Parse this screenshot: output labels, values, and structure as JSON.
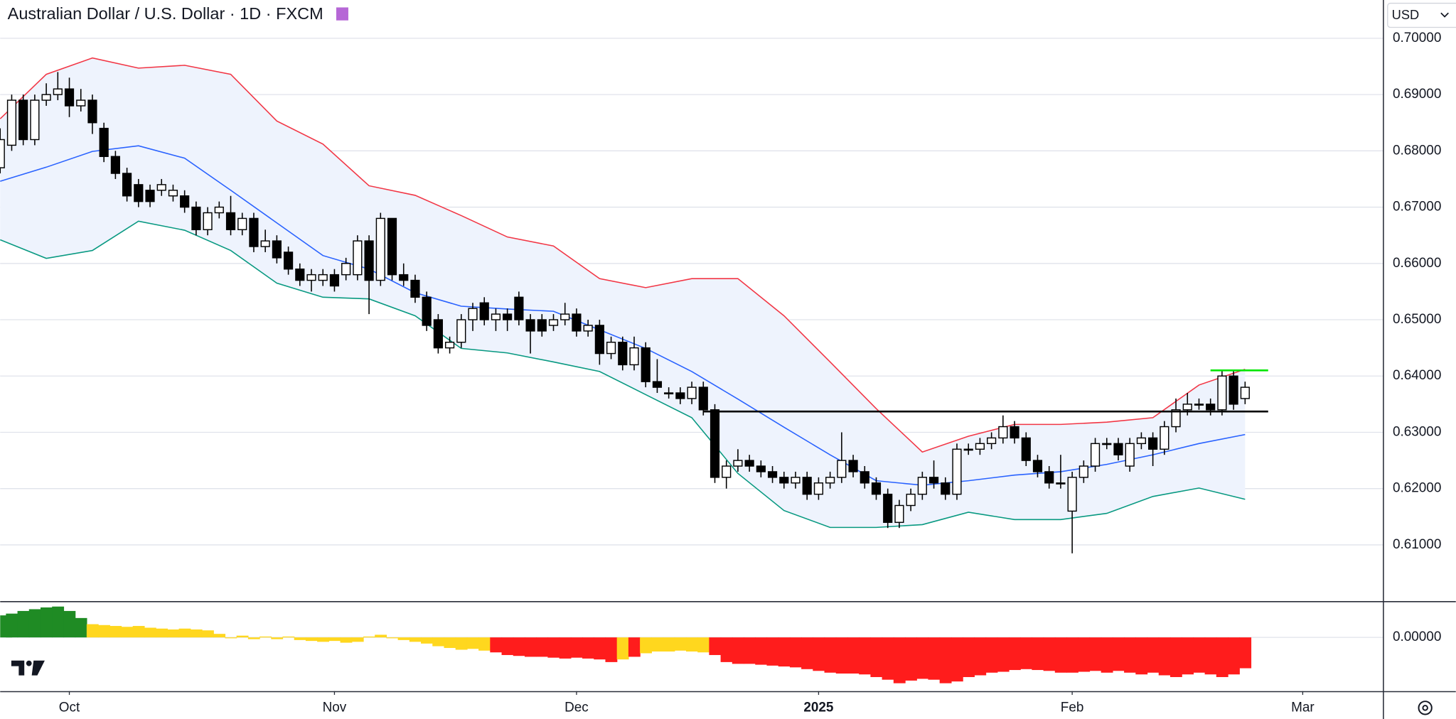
{
  "header": {
    "title": "Australian Dollar / U.S. Dollar · 1D · FXCM",
    "currency": "USD"
  },
  "chart_data": [
    {
      "type": "candlestick",
      "x": [
        0,
        1,
        2,
        3,
        4,
        5,
        6,
        7,
        8,
        9,
        10,
        11,
        12,
        13,
        14,
        15,
        16,
        17,
        18,
        19,
        20,
        21,
        22,
        23,
        24,
        25,
        26,
        27,
        28,
        29,
        30,
        31,
        32,
        33,
        34,
        35,
        36,
        37,
        38,
        39,
        40,
        41,
        42,
        43,
        44,
        45,
        46,
        47,
        48,
        49,
        50,
        51,
        52,
        53,
        54,
        55,
        56,
        57,
        58,
        59,
        60,
        61,
        62,
        63,
        64,
        65,
        66,
        67,
        68,
        69,
        70,
        71,
        72,
        73,
        74,
        75,
        76,
        77,
        78,
        79,
        80,
        81,
        82,
        83,
        84,
        85,
        86,
        87,
        88,
        89,
        90,
        91,
        92,
        93,
        94,
        95,
        96,
        97,
        98,
        99,
        100,
        101,
        102,
        103,
        104,
        105,
        106,
        107,
        108
      ],
      "open": [
        0.677,
        0.681,
        0.689,
        0.682,
        0.689,
        0.69,
        0.691,
        0.688,
        0.689,
        0.684,
        0.679,
        0.676,
        0.674,
        0.673,
        0.673,
        0.672,
        0.672,
        0.67,
        0.666,
        0.669,
        0.669,
        0.666,
        0.668,
        0.663,
        0.664,
        0.662,
        0.659,
        0.657,
        0.657,
        0.658,
        0.658,
        0.658,
        0.664,
        0.657,
        0.668,
        0.658,
        0.657,
        0.654,
        0.65,
        0.645,
        0.646,
        0.65,
        0.653,
        0.65,
        0.651,
        0.654,
        0.65,
        0.65,
        0.649,
        0.65,
        0.651,
        0.648,
        0.649,
        0.644,
        0.646,
        0.642,
        0.645,
        0.639,
        0.637,
        0.637,
        0.636,
        0.638,
        0.634,
        0.622,
        0.624,
        0.625,
        0.624,
        0.623,
        0.622,
        0.621,
        0.622,
        0.619,
        0.621,
        0.622,
        0.625,
        0.623,
        0.621,
        0.619,
        0.614,
        0.617,
        0.619,
        0.622,
        0.621,
        0.619,
        0.627,
        0.627,
        0.628,
        0.629,
        0.631,
        0.629,
        0.625,
        0.623,
        0.621,
        0.616,
        0.622,
        0.624,
        0.628,
        0.628,
        0.624,
        0.628,
        0.629,
        0.627,
        0.631,
        0.634,
        0.635,
        0.635,
        0.634,
        0.64,
        0.636
      ],
      "high": [
        0.684,
        0.69,
        0.69,
        0.69,
        0.692,
        0.694,
        0.693,
        0.691,
        0.69,
        0.685,
        0.68,
        0.677,
        0.675,
        0.674,
        0.675,
        0.674,
        0.673,
        0.671,
        0.67,
        0.671,
        0.672,
        0.669,
        0.669,
        0.666,
        0.665,
        0.663,
        0.66,
        0.659,
        0.659,
        0.659,
        0.661,
        0.665,
        0.665,
        0.669,
        0.668,
        0.66,
        0.658,
        0.655,
        0.651,
        0.647,
        0.651,
        0.653,
        0.654,
        0.652,
        0.652,
        0.655,
        0.651,
        0.651,
        0.651,
        0.653,
        0.652,
        0.65,
        0.65,
        0.647,
        0.647,
        0.647,
        0.646,
        0.643,
        0.638,
        0.638,
        0.639,
        0.639,
        0.635,
        0.625,
        0.627,
        0.626,
        0.625,
        0.624,
        0.623,
        0.623,
        0.623,
        0.622,
        0.623,
        0.63,
        0.626,
        0.624,
        0.622,
        0.62,
        0.618,
        0.62,
        0.623,
        0.625,
        0.622,
        0.628,
        0.628,
        0.629,
        0.63,
        0.633,
        0.632,
        0.63,
        0.626,
        0.624,
        0.626,
        0.623,
        0.625,
        0.629,
        0.629,
        0.629,
        0.629,
        0.63,
        0.63,
        0.632,
        0.636,
        0.637,
        0.636,
        0.636,
        0.641,
        0.641,
        0.639
      ],
      "low": [
        0.676,
        0.68,
        0.681,
        0.681,
        0.688,
        0.689,
        0.686,
        0.687,
        0.683,
        0.678,
        0.675,
        0.671,
        0.67,
        0.67,
        0.672,
        0.671,
        0.669,
        0.665,
        0.665,
        0.668,
        0.665,
        0.665,
        0.662,
        0.662,
        0.66,
        0.658,
        0.656,
        0.655,
        0.656,
        0.655,
        0.657,
        0.657,
        0.651,
        0.656,
        0.657,
        0.656,
        0.653,
        0.648,
        0.644,
        0.644,
        0.645,
        0.648,
        0.649,
        0.648,
        0.648,
        0.649,
        0.644,
        0.647,
        0.648,
        0.649,
        0.647,
        0.647,
        0.642,
        0.643,
        0.641,
        0.641,
        0.638,
        0.637,
        0.636,
        0.635,
        0.635,
        0.633,
        0.621,
        0.62,
        0.623,
        0.623,
        0.622,
        0.621,
        0.62,
        0.62,
        0.618,
        0.618,
        0.62,
        0.621,
        0.622,
        0.62,
        0.618,
        0.613,
        0.613,
        0.616,
        0.618,
        0.62,
        0.618,
        0.618,
        0.626,
        0.626,
        0.627,
        0.628,
        0.628,
        0.624,
        0.622,
        0.62,
        0.62,
        0.6085,
        0.621,
        0.623,
        0.627,
        0.625,
        0.623,
        0.627,
        0.624,
        0.626,
        0.63,
        0.633,
        0.634,
        0.633,
        0.633,
        0.634,
        0.635
      ],
      "close": [
        0.682,
        0.689,
        0.682,
        0.689,
        0.69,
        0.691,
        0.688,
        0.689,
        0.685,
        0.679,
        0.676,
        0.672,
        0.671,
        0.671,
        0.674,
        0.673,
        0.67,
        0.666,
        0.669,
        0.67,
        0.666,
        0.668,
        0.663,
        0.664,
        0.661,
        0.659,
        0.657,
        0.658,
        0.658,
        0.656,
        0.66,
        0.664,
        0.657,
        0.668,
        0.658,
        0.657,
        0.654,
        0.649,
        0.645,
        0.646,
        0.65,
        0.652,
        0.65,
        0.651,
        0.65,
        0.65,
        0.648,
        0.648,
        0.65,
        0.651,
        0.648,
        0.649,
        0.644,
        0.646,
        0.642,
        0.645,
        0.639,
        0.638,
        0.637,
        0.636,
        0.638,
        0.634,
        0.622,
        0.624,
        0.625,
        0.624,
        0.623,
        0.622,
        0.621,
        0.622,
        0.619,
        0.621,
        0.622,
        0.625,
        0.623,
        0.621,
        0.619,
        0.614,
        0.617,
        0.619,
        0.622,
        0.621,
        0.619,
        0.627,
        0.627,
        0.628,
        0.629,
        0.631,
        0.629,
        0.625,
        0.623,
        0.621,
        0.621,
        0.622,
        0.624,
        0.628,
        0.628,
        0.626,
        0.628,
        0.629,
        0.627,
        0.631,
        0.634,
        0.635,
        0.635,
        0.634,
        0.64,
        0.635,
        0.638
      ],
      "up_color": "#ffffff",
      "down_color": "#000000",
      "xlim": [
        0,
        120
      ],
      "ylim": [
        0.6,
        0.7068
      ],
      "xticks": [
        {
          "value": 6,
          "label": "Oct"
        },
        {
          "value": 29,
          "label": "Nov"
        },
        {
          "value": 50,
          "label": "Dec"
        },
        {
          "value": 71,
          "label": "2025"
        },
        {
          "value": 93,
          "label": "Feb"
        },
        {
          "value": 113,
          "label": "Mar"
        }
      ],
      "yticks": [
        {
          "value": 0.61,
          "label": "0.61000"
        },
        {
          "value": 0.62,
          "label": "0.62000"
        },
        {
          "value": 0.63,
          "label": "0.63000"
        },
        {
          "value": 0.64,
          "label": "0.64000"
        },
        {
          "value": 0.65,
          "label": "0.65000"
        },
        {
          "value": 0.66,
          "label": "0.66000"
        },
        {
          "value": 0.67,
          "label": "0.67000"
        },
        {
          "value": 0.68,
          "label": "0.68000"
        },
        {
          "value": 0.69,
          "label": "0.69000"
        },
        {
          "value": 0.7,
          "label": "0.70000"
        }
      ],
      "grid": true,
      "bands": {
        "x": [
          0,
          4,
          8,
          12,
          16,
          20,
          24,
          28,
          32,
          36,
          40,
          44,
          48,
          52,
          56,
          60,
          64,
          68,
          72,
          76,
          80,
          84,
          88,
          92,
          96,
          100,
          104,
          108
        ],
        "fill": "#eef3fd",
        "series": [
          {
            "color": "#f23645",
            "values": [
              0.6857,
              0.6936,
              0.6965,
              0.6947,
              0.6952,
              0.6936,
              0.6853,
              0.6812,
              0.6738,
              0.6721,
              0.6685,
              0.6647,
              0.6631,
              0.6573,
              0.6557,
              0.6573,
              0.6573,
              0.6507,
              0.6425,
              0.6342,
              0.6265,
              0.6293,
              0.6314,
              0.6314,
              0.6318,
              0.6326,
              0.6384,
              0.6412
            ]
          },
          {
            "color": "#2962ff",
            "values": [
              0.6746,
              0.6771,
              0.6799,
              0.6809,
              0.6787,
              0.673,
              0.6672,
              0.6614,
              0.659,
              0.6548,
              0.6524,
              0.6519,
              0.6515,
              0.6482,
              0.6449,
              0.6408,
              0.6359,
              0.6309,
              0.626,
              0.6214,
              0.6206,
              0.6214,
              0.6224,
              0.623,
              0.6243,
              0.626,
              0.628,
              0.6296
            ]
          },
          {
            "color": "#089981",
            "values": [
              0.6642,
              0.6609,
              0.6623,
              0.6675,
              0.6659,
              0.6623,
              0.6565,
              0.654,
              0.6537,
              0.6507,
              0.6449,
              0.6441,
              0.6425,
              0.6408,
              0.6367,
              0.6326,
              0.6227,
              0.6161,
              0.6131,
              0.6131,
              0.6136,
              0.6158,
              0.6145,
              0.6145,
              0.6156,
              0.6186,
              0.6201,
              0.6181
            ]
          }
        ]
      },
      "lines": [
        {
          "x": [
            61,
            110
          ],
          "y": 0.6337,
          "color": "#000000"
        },
        {
          "x": [
            105,
            110
          ],
          "y": 0.641,
          "color": "#00e600"
        }
      ]
    },
    {
      "type": "histogram-area",
      "values": [
        0.0025,
        0.0027,
        0.003,
        0.0032,
        0.0034,
        0.0035,
        0.003,
        0.0022,
        0.0015,
        0.0014,
        0.0013,
        0.0012,
        0.0013,
        0.0011,
        0.001,
        0.0009,
        0.001,
        0.0009,
        0.0008,
        0.0004,
        -0.0001,
        0.0002,
        -0.0002,
        0.0001,
        -0.0002,
        0.0001,
        -0.0003,
        -0.0004,
        -0.0005,
        -0.0004,
        -0.0006,
        -0.0005,
        0.0001,
        0.0003,
        -0.0001,
        -0.0003,
        -0.0005,
        -0.0007,
        -0.001,
        -0.0012,
        -0.0014,
        -0.0013,
        -0.0015,
        -0.0017,
        -0.002,
        -0.0021,
        -0.0022,
        -0.0022,
        -0.0023,
        -0.0024,
        -0.0023,
        -0.0024,
        -0.0025,
        -0.0028,
        -0.0025,
        -0.0022,
        -0.0018,
        -0.0016,
        -0.0016,
        -0.0015,
        -0.0016,
        -0.0017,
        -0.002,
        -0.0028,
        -0.003,
        -0.003,
        -0.0031,
        -0.0032,
        -0.0033,
        -0.0034,
        -0.0036,
        -0.0038,
        -0.004,
        -0.0041,
        -0.0041,
        -0.0042,
        -0.0045,
        -0.0048,
        -0.0052,
        -0.0049,
        -0.0047,
        -0.0048,
        -0.0052,
        -0.005,
        -0.0045,
        -0.0043,
        -0.004,
        -0.0039,
        -0.0037,
        -0.0036,
        -0.0037,
        -0.0038,
        -0.004,
        -0.004,
        -0.0039,
        -0.0038,
        -0.004,
        -0.0038,
        -0.004,
        -0.0042,
        -0.004,
        -0.0043,
        -0.0045,
        -0.0042,
        -0.004,
        -0.0042,
        -0.0045,
        -0.0042,
        -0.0035
      ],
      "colors": [
        "#1f8b24",
        "#1f8b24",
        "#1f8b24",
        "#1f8b24",
        "#1f8b24",
        "#1f8b24",
        "#1f8b24",
        "#1f8b24",
        "#ffd71e",
        "#ffd71e",
        "#ffd71e",
        "#ffd71e",
        "#ffd71e",
        "#ffd71e",
        "#ffd71e",
        "#ffd71e",
        "#ffd71e",
        "#ffd71e",
        "#ffd71e",
        "#ffd71e",
        "#ffd71e",
        "#ffd71e",
        "#ffd71e",
        "#ffd71e",
        "#ffd71e",
        "#ffd71e",
        "#ffd71e",
        "#ffd71e",
        "#ffd71e",
        "#ffd71e",
        "#ffd71e",
        "#ffd71e",
        "#ffd71e",
        "#ffd71e",
        "#ffd71e",
        "#ffd71e",
        "#ffd71e",
        "#ffd71e",
        "#ffd71e",
        "#ffd71e",
        "#ffd71e",
        "#ffd71e",
        "#ffd71e",
        "#ff1c1c",
        "#ff1c1c",
        "#ff1c1c",
        "#ff1c1c",
        "#ff1c1c",
        "#ff1c1c",
        "#ff1c1c",
        "#ff1c1c",
        "#ff1c1c",
        "#ff1c1c",
        "#ff1c1c",
        "#ffd71e",
        "#ff1c1c",
        "#ffd71e",
        "#ffd71e",
        "#ffd71e",
        "#ffd71e",
        "#ffd71e",
        "#ffd71e",
        "#ff1c1c",
        "#ff1c1c",
        "#ff1c1c",
        "#ff1c1c",
        "#ff1c1c",
        "#ff1c1c",
        "#ff1c1c",
        "#ff1c1c",
        "#ff1c1c",
        "#ff1c1c",
        "#ff1c1c",
        "#ff1c1c",
        "#ff1c1c",
        "#ff1c1c",
        "#ff1c1c",
        "#ff1c1c",
        "#ff1c1c",
        "#ff1c1c",
        "#ff1c1c",
        "#ff1c1c",
        "#ff1c1c",
        "#ff1c1c",
        "#ff1c1c",
        "#ff1c1c",
        "#ff1c1c",
        "#ff1c1c",
        "#ff1c1c",
        "#ff1c1c",
        "#ff1c1c",
        "#ff1c1c",
        "#ff1c1c",
        "#ff1c1c",
        "#ff1c1c",
        "#ff1c1c",
        "#ff1c1c",
        "#ff1c1c",
        "#ff1c1c",
        "#ff1c1c",
        "#ff1c1c",
        "#ff1c1c",
        "#ff1c1c",
        "#ff1c1c",
        "#ff1c1c",
        "#ff1c1c",
        "#ff1c1c",
        "#ff1c1c",
        "#ff1c1c"
      ],
      "ylim": [
        -0.0061,
        0.0039
      ],
      "yticks": [
        {
          "value": 0,
          "label": "0.00000"
        }
      ]
    }
  ]
}
